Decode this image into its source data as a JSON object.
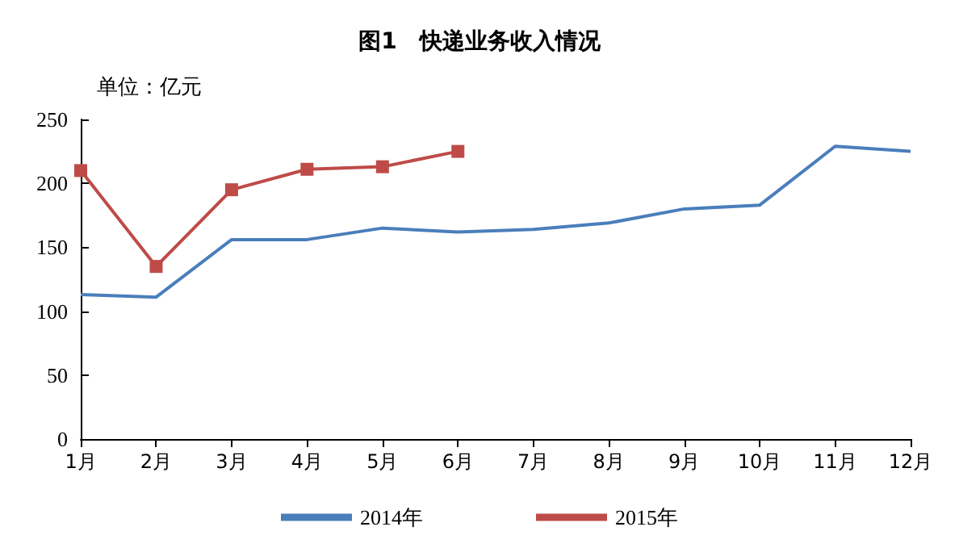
{
  "chart_data": {
    "type": "line",
    "title": "图1　快递业务收入情况",
    "ylabel": "单位：亿元",
    "categories": [
      "1月",
      "2月",
      "3月",
      "4月",
      "5月",
      "6月",
      "7月",
      "8月",
      "9月",
      "10月",
      "11月",
      "12月"
    ],
    "series": [
      {
        "name": "2014年",
        "color": "#4a7ebb",
        "marker": "none",
        "values": [
          113,
          111,
          156,
          156,
          165,
          162,
          164,
          169,
          180,
          183,
          229,
          225
        ]
      },
      {
        "name": "2015年",
        "color": "#be4b48",
        "marker": "square",
        "values": [
          210,
          135,
          195,
          211,
          213,
          225,
          null,
          null,
          null,
          null,
          null,
          null
        ]
      }
    ],
    "ylim": [
      0,
      250
    ],
    "yticks": [
      0,
      50,
      100,
      150,
      200,
      250
    ],
    "grid": false,
    "legend": "bottom",
    "line_style": "solid"
  }
}
